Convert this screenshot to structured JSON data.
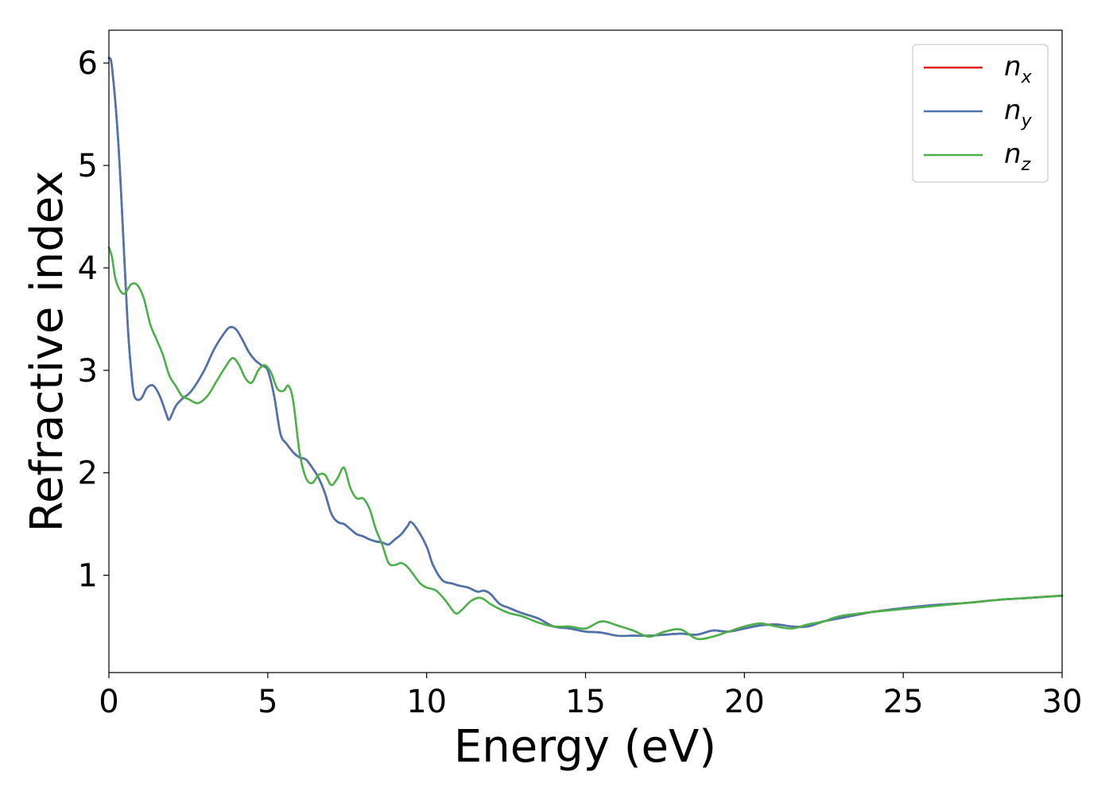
{
  "chart_data": {
    "type": "line",
    "xlabel": "Energy (eV)",
    "ylabel": "Refractive index",
    "xlim": [
      0,
      30
    ],
    "ylim": [
      0.05,
      6.32
    ],
    "xticks": [
      0,
      5,
      10,
      15,
      20,
      25,
      30
    ],
    "yticks": [
      1,
      2,
      3,
      4,
      5,
      6
    ],
    "grid": false,
    "legend": "top-right",
    "series": [
      {
        "name": "n_x",
        "legend_base": "n",
        "legend_sub": "x",
        "color": "#e41a1c",
        "x": [
          0,
          0.1,
          0.3,
          0.5,
          0.6,
          0.7,
          0.8,
          1.0,
          1.2,
          1.4,
          1.6,
          1.8,
          1.9,
          2.1,
          2.3,
          2.6,
          3.0,
          3.3,
          3.6,
          3.8,
          4.0,
          4.2,
          4.4,
          4.6,
          4.8,
          5.0,
          5.2,
          5.4,
          5.6,
          5.8,
          6.0,
          6.2,
          6.4,
          6.6,
          6.8,
          7.0,
          7.2,
          7.4,
          7.6,
          7.8,
          8.0,
          8.2,
          8.4,
          8.6,
          8.8,
          9.0,
          9.2,
          9.4,
          9.5,
          9.7,
          10.0,
          10.2,
          10.5,
          10.8,
          11.0,
          11.3,
          11.6,
          11.8,
          12.0,
          12.3,
          12.6,
          13.0,
          13.5,
          14.0,
          14.5,
          15.0,
          15.5,
          16.0,
          16.5,
          17.0,
          17.5,
          18.0,
          18.5,
          19.0,
          19.5,
          20.0,
          20.5,
          21.0,
          21.5,
          22.0,
          22.5,
          23.0,
          24.0,
          25.0,
          26.0,
          27.0,
          28.0,
          29.0,
          30.0
        ],
        "values": [
          6.05,
          5.95,
          5.2,
          4.0,
          3.4,
          3.0,
          2.75,
          2.72,
          2.83,
          2.85,
          2.75,
          2.58,
          2.52,
          2.65,
          2.72,
          2.8,
          3.0,
          3.2,
          3.35,
          3.42,
          3.4,
          3.3,
          3.18,
          3.1,
          3.05,
          3.0,
          2.75,
          2.38,
          2.28,
          2.2,
          2.15,
          2.13,
          2.05,
          1.95,
          1.8,
          1.6,
          1.52,
          1.5,
          1.45,
          1.4,
          1.38,
          1.35,
          1.33,
          1.32,
          1.3,
          1.35,
          1.4,
          1.48,
          1.52,
          1.45,
          1.28,
          1.1,
          0.95,
          0.92,
          0.9,
          0.88,
          0.84,
          0.85,
          0.82,
          0.72,
          0.68,
          0.63,
          0.58,
          0.5,
          0.48,
          0.45,
          0.44,
          0.41,
          0.41,
          0.41,
          0.42,
          0.43,
          0.42,
          0.46,
          0.45,
          0.48,
          0.51,
          0.52,
          0.5,
          0.5,
          0.55,
          0.58,
          0.64,
          0.68,
          0.71,
          0.73,
          0.76,
          0.78,
          0.8
        ]
      },
      {
        "name": "n_y",
        "legend_base": "n",
        "legend_sub": "y",
        "color": "#4a76ad",
        "x": [
          0,
          0.1,
          0.3,
          0.5,
          0.6,
          0.7,
          0.8,
          1.0,
          1.2,
          1.4,
          1.6,
          1.8,
          1.9,
          2.1,
          2.3,
          2.6,
          3.0,
          3.3,
          3.6,
          3.8,
          4.0,
          4.2,
          4.4,
          4.6,
          4.8,
          5.0,
          5.2,
          5.4,
          5.6,
          5.8,
          6.0,
          6.2,
          6.4,
          6.6,
          6.8,
          7.0,
          7.2,
          7.4,
          7.6,
          7.8,
          8.0,
          8.2,
          8.4,
          8.6,
          8.8,
          9.0,
          9.2,
          9.4,
          9.5,
          9.7,
          10.0,
          10.2,
          10.5,
          10.8,
          11.0,
          11.3,
          11.6,
          11.8,
          12.0,
          12.3,
          12.6,
          13.0,
          13.5,
          14.0,
          14.5,
          15.0,
          15.5,
          16.0,
          16.5,
          17.0,
          17.5,
          18.0,
          18.5,
          19.0,
          19.5,
          20.0,
          20.5,
          21.0,
          21.5,
          22.0,
          22.5,
          23.0,
          24.0,
          25.0,
          26.0,
          27.0,
          28.0,
          29.0,
          30.0
        ],
        "values": [
          6.05,
          5.95,
          5.2,
          4.0,
          3.4,
          3.0,
          2.75,
          2.72,
          2.83,
          2.85,
          2.75,
          2.58,
          2.52,
          2.65,
          2.72,
          2.8,
          3.0,
          3.2,
          3.35,
          3.42,
          3.4,
          3.3,
          3.18,
          3.1,
          3.05,
          3.0,
          2.75,
          2.38,
          2.28,
          2.2,
          2.15,
          2.13,
          2.05,
          1.95,
          1.8,
          1.6,
          1.52,
          1.5,
          1.45,
          1.4,
          1.38,
          1.35,
          1.33,
          1.32,
          1.3,
          1.35,
          1.4,
          1.48,
          1.52,
          1.45,
          1.28,
          1.1,
          0.95,
          0.92,
          0.9,
          0.88,
          0.84,
          0.85,
          0.82,
          0.72,
          0.68,
          0.63,
          0.58,
          0.5,
          0.48,
          0.45,
          0.44,
          0.41,
          0.41,
          0.41,
          0.42,
          0.43,
          0.42,
          0.46,
          0.45,
          0.48,
          0.51,
          0.52,
          0.5,
          0.5,
          0.55,
          0.58,
          0.64,
          0.68,
          0.71,
          0.73,
          0.76,
          0.78,
          0.8
        ]
      },
      {
        "name": "n_z",
        "legend_base": "n",
        "legend_sub": "z",
        "color": "#4daf4a",
        "x": [
          0,
          0.1,
          0.2,
          0.35,
          0.5,
          0.7,
          0.9,
          1.1,
          1.3,
          1.5,
          1.7,
          1.9,
          2.1,
          2.3,
          2.5,
          2.8,
          3.1,
          3.4,
          3.7,
          3.9,
          4.1,
          4.3,
          4.5,
          4.7,
          4.9,
          5.1,
          5.3,
          5.5,
          5.65,
          5.8,
          6.0,
          6.2,
          6.4,
          6.6,
          6.8,
          7.0,
          7.2,
          7.4,
          7.6,
          7.8,
          8.0,
          8.2,
          8.4,
          8.6,
          8.8,
          9.0,
          9.2,
          9.4,
          9.6,
          9.8,
          10.0,
          10.3,
          10.6,
          10.9,
          11.1,
          11.4,
          11.7,
          12.0,
          12.3,
          12.6,
          13.0,
          13.5,
          14.0,
          14.5,
          15.0,
          15.5,
          16.0,
          16.5,
          17.0,
          17.5,
          18.0,
          18.5,
          19.0,
          19.5,
          20.0,
          20.5,
          21.0,
          21.5,
          22.0,
          22.5,
          23.0,
          24.0,
          25.0,
          26.0,
          27.0,
          28.0,
          29.0,
          30.0
        ],
        "values": [
          4.2,
          4.1,
          3.9,
          3.78,
          3.75,
          3.84,
          3.83,
          3.7,
          3.45,
          3.3,
          3.15,
          2.95,
          2.85,
          2.75,
          2.72,
          2.68,
          2.75,
          2.9,
          3.05,
          3.12,
          3.05,
          2.92,
          2.88,
          3.0,
          3.05,
          2.98,
          2.82,
          2.8,
          2.85,
          2.7,
          2.2,
          1.95,
          1.9,
          1.98,
          1.98,
          1.88,
          1.95,
          2.05,
          1.85,
          1.75,
          1.75,
          1.65,
          1.45,
          1.3,
          1.12,
          1.1,
          1.12,
          1.08,
          1.0,
          0.92,
          0.88,
          0.85,
          0.75,
          0.63,
          0.66,
          0.75,
          0.78,
          0.72,
          0.67,
          0.63,
          0.6,
          0.54,
          0.5,
          0.5,
          0.48,
          0.55,
          0.51,
          0.46,
          0.4,
          0.45,
          0.47,
          0.38,
          0.4,
          0.45,
          0.5,
          0.53,
          0.5,
          0.48,
          0.52,
          0.55,
          0.6,
          0.64,
          0.67,
          0.7,
          0.73,
          0.76,
          0.78,
          0.8
        ]
      }
    ]
  }
}
